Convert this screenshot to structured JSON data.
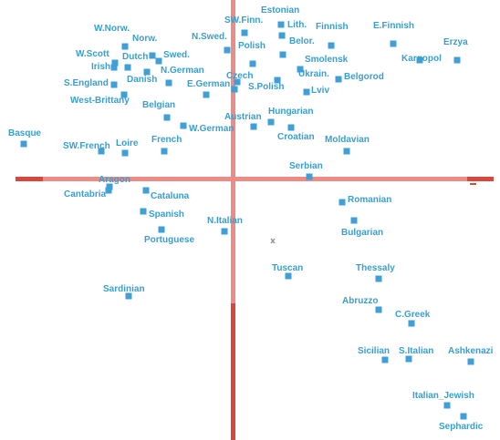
{
  "chart_data": {
    "type": "scatter",
    "title": "",
    "xlabel": "",
    "ylabel": "",
    "xlim": [
      -255,
      293
    ],
    "ylim": [
      -284,
      199
    ],
    "axis_color": "#e2463b",
    "point_color": "#3f9fd6",
    "label_color": "#3a9fd0",
    "points": [
      {
        "name": "Estonian",
        "x": 53,
        "y": 172,
        "lx": 31,
        "ly": 185
      },
      {
        "name": "SW.Finn.",
        "x": 13,
        "y": 163,
        "lx": -9,
        "ly": 174
      },
      {
        "name": "Lith.",
        "x": 54,
        "y": 160,
        "lx": 60,
        "ly": 169
      },
      {
        "name": "Finnish",
        "x": 108,
        "y": 149,
        "lx": 91,
        "ly": 167
      },
      {
        "name": "E.Finnish",
        "x": 176,
        "y": 151,
        "lx": 154,
        "ly": 168
      },
      {
        "name": "Erzya",
        "x": 246,
        "y": 133,
        "lx": 231,
        "ly": 150
      },
      {
        "name": "Kargopol",
        "x": 205,
        "y": 133,
        "lx": 185,
        "ly": 132
      },
      {
        "name": "W.Norw.",
        "x": -118,
        "y": 148,
        "lx": -152,
        "ly": 165
      },
      {
        "name": "Norw.",
        "x": -88,
        "y": 138,
        "lx": -110,
        "ly": 154
      },
      {
        "name": "N.Swed.",
        "x": -6,
        "y": 144,
        "lx": -45,
        "ly": 156
      },
      {
        "name": "Belor.",
        "x": 55,
        "y": 139,
        "lx": 62,
        "ly": 151
      },
      {
        "name": "Polish",
        "x": 22,
        "y": 129,
        "lx": 6,
        "ly": 146
      },
      {
        "name": "W.Scott",
        "x": -129,
        "y": 130,
        "lx": -172,
        "ly": 137
      },
      {
        "name": "Irish",
        "x": -130,
        "y": 125,
        "lx": -155,
        "ly": 123
      },
      {
        "name": "Dutch",
        "x": -115,
        "y": 125,
        "lx": -121,
        "ly": 134
      },
      {
        "name": "Swed.",
        "x": -81,
        "y": 132,
        "lx": -76,
        "ly": 136
      },
      {
        "name": "Smolensk",
        "x": 74,
        "y": 123,
        "lx": 79,
        "ly": 131
      },
      {
        "name": "N.German",
        "x": -94,
        "y": 120,
        "lx": -79,
        "ly": 119
      },
      {
        "name": "Czech",
        "x": 5,
        "y": 109,
        "lx": -7,
        "ly": 113
      },
      {
        "name": "Ukrain.",
        "x": 49,
        "y": 111,
        "lx": 72,
        "ly": 115
      },
      {
        "name": "Belgorod",
        "x": 116,
        "y": 112,
        "lx": 122,
        "ly": 112
      },
      {
        "name": "Danish",
        "x": -70,
        "y": 108,
        "lx": -116,
        "ly": 109
      },
      {
        "name": "S.England",
        "x": -130,
        "y": 106,
        "lx": -185,
        "ly": 105
      },
      {
        "name": "E.German",
        "x": -29,
        "y": 95,
        "lx": -50,
        "ly": 104
      },
      {
        "name": "S.Polish",
        "x": 2,
        "y": 101,
        "lx": 17,
        "ly": 101
      },
      {
        "name": "Lviv",
        "x": 81,
        "y": 98,
        "lx": 86,
        "ly": 97
      },
      {
        "name": "West-Brittany",
        "x": -119,
        "y": 95,
        "lx": -178,
        "ly": 86
      },
      {
        "name": "Belgian",
        "x": -72,
        "y": 70,
        "lx": -99,
        "ly": 81
      },
      {
        "name": "Hungarian",
        "x": 42,
        "y": 65,
        "lx": 39,
        "ly": 74
      },
      {
        "name": "Austrian",
        "x": 23,
        "y": 60,
        "lx": -9,
        "ly": 68
      },
      {
        "name": "W.German",
        "x": -54,
        "y": 61,
        "lx": -48,
        "ly": 55
      },
      {
        "name": "Croatian",
        "x": 64,
        "y": 59,
        "lx": 49,
        "ly": 46
      },
      {
        "name": "Basque",
        "x": -229,
        "y": 41,
        "lx": -246,
        "ly": 50
      },
      {
        "name": "SW.French",
        "x": -144,
        "y": 33,
        "lx": -186,
        "ly": 36
      },
      {
        "name": "Loire",
        "x": -118,
        "y": 31,
        "lx": -128,
        "ly": 39
      },
      {
        "name": "French",
        "x": -75,
        "y": 33,
        "lx": -89,
        "ly": 43
      },
      {
        "name": "Moldavian",
        "x": 125,
        "y": 33,
        "lx": 101,
        "ly": 43
      },
      {
        "name": "Serbian",
        "x": 84,
        "y": 5,
        "lx": 62,
        "ly": 14
      },
      {
        "name": "Aragon",
        "x": -135,
        "y": -6,
        "lx": -147,
        "ly": -1
      },
      {
        "name": "Cantabria",
        "x": -136,
        "y": -10,
        "lx": -185,
        "ly": -17
      },
      {
        "name": "Cataluna",
        "x": -95,
        "y": -10,
        "lx": -90,
        "ly": -19
      },
      {
        "name": "Romanian",
        "x": 120,
        "y": -23,
        "lx": 126,
        "ly": -23
      },
      {
        "name": "Spanish",
        "x": -98,
        "y": -33,
        "lx": -92,
        "ly": -39
      },
      {
        "name": "Bulgarian",
        "x": 133,
        "y": -43,
        "lx": 119,
        "ly": -59
      },
      {
        "name": "N.Italian",
        "x": -9,
        "y": -55,
        "lx": -28,
        "ly": -46
      },
      {
        "name": "Portuguese",
        "x": -78,
        "y": -53,
        "lx": -97,
        "ly": -67
      },
      {
        "name": "Tuscan",
        "x": 61,
        "y": -104,
        "lx": 43,
        "ly": -98
      },
      {
        "name": "Thessaly",
        "x": 160,
        "y": -107,
        "lx": 135,
        "ly": -98
      },
      {
        "name": "Sardinian",
        "x": -114,
        "y": -126,
        "lx": -142,
        "ly": -121
      },
      {
        "name": "Abruzzo",
        "x": 160,
        "y": -141,
        "lx": 120,
        "ly": -134
      },
      {
        "name": "C.Greek",
        "x": 196,
        "y": -156,
        "lx": 178,
        "ly": -149
      },
      {
        "name": "Sicilian",
        "x": 167,
        "y": -196,
        "lx": 137,
        "ly": -189
      },
      {
        "name": "S.Italian",
        "x": 193,
        "y": -195,
        "lx": 182,
        "ly": -189
      },
      {
        "name": "Ashkenazi",
        "x": 261,
        "y": -198,
        "lx": 236,
        "ly": -189
      },
      {
        "name": "Italian_Jewish",
        "x": 235,
        "y": -246,
        "lx": 197,
        "ly": -238
      },
      {
        "name": "Sephardic",
        "x": 253,
        "y": -258,
        "lx": 226,
        "ly": -272
      }
    ]
  }
}
